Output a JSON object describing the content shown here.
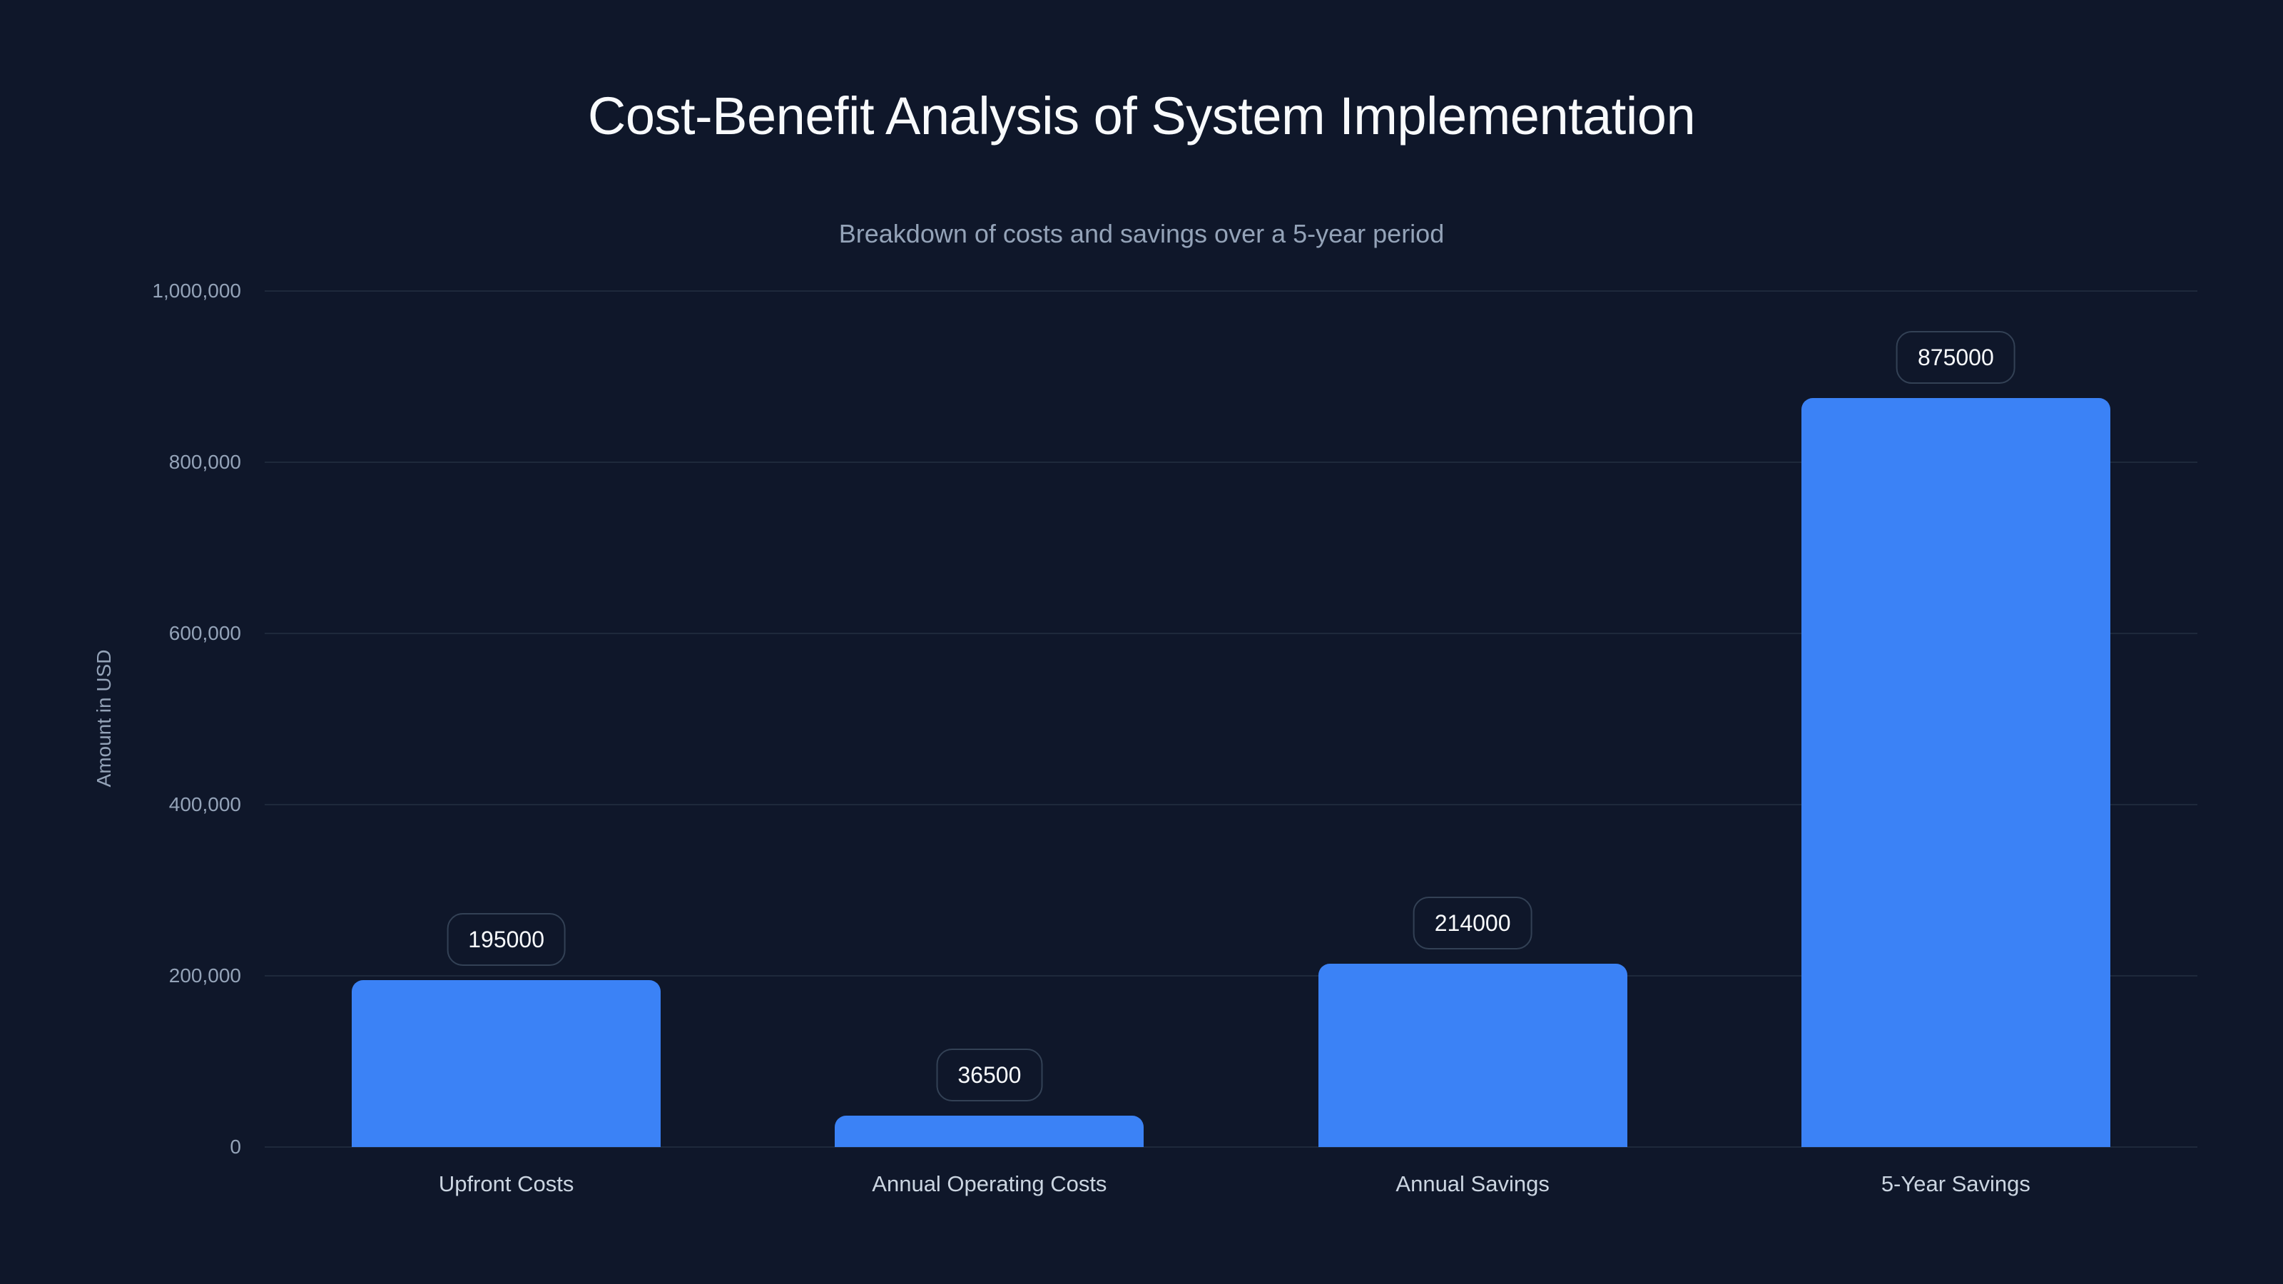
{
  "header": {
    "title": "Cost-Benefit Analysis of System Implementation",
    "subtitle": "Breakdown of costs and savings over a 5-year period"
  },
  "axes": {
    "y_label": "Amount in USD",
    "y_ticks": [
      "0",
      "200,000",
      "400,000",
      "600,000",
      "800,000",
      "1,000,000"
    ],
    "x_ticks": [
      "Upfront Costs",
      "Annual Operating Costs",
      "Annual Savings",
      "5-Year Savings"
    ]
  },
  "bars": [
    {
      "label": "Upfront Costs",
      "value": 195000,
      "value_label": "195000"
    },
    {
      "label": "Annual Operating Costs",
      "value": 36500,
      "value_label": "36500"
    },
    {
      "label": "Annual Savings",
      "value": 214000,
      "value_label": "214000"
    },
    {
      "label": "5-Year Savings",
      "value": 875000,
      "value_label": "875000"
    }
  ],
  "colors": {
    "background": "#0f172a",
    "bar": "#3b82f6",
    "grid": "#1e293b",
    "text_primary": "#f8fafc",
    "text_secondary": "#94a3b8"
  },
  "chart_data": {
    "type": "bar",
    "title": "Cost-Benefit Analysis of System Implementation",
    "subtitle": "Breakdown of costs and savings over a 5-year period",
    "categories": [
      "Upfront Costs",
      "Annual Operating Costs",
      "Annual Savings",
      "5-Year Savings"
    ],
    "values": [
      195000,
      36500,
      214000,
      875000
    ],
    "xlabel": "",
    "ylabel": "Amount in USD",
    "ylim": [
      0,
      1000000
    ],
    "yticks": [
      0,
      200000,
      400000,
      600000,
      800000,
      1000000
    ],
    "grid": true,
    "legend": null,
    "data_labels": true
  }
}
